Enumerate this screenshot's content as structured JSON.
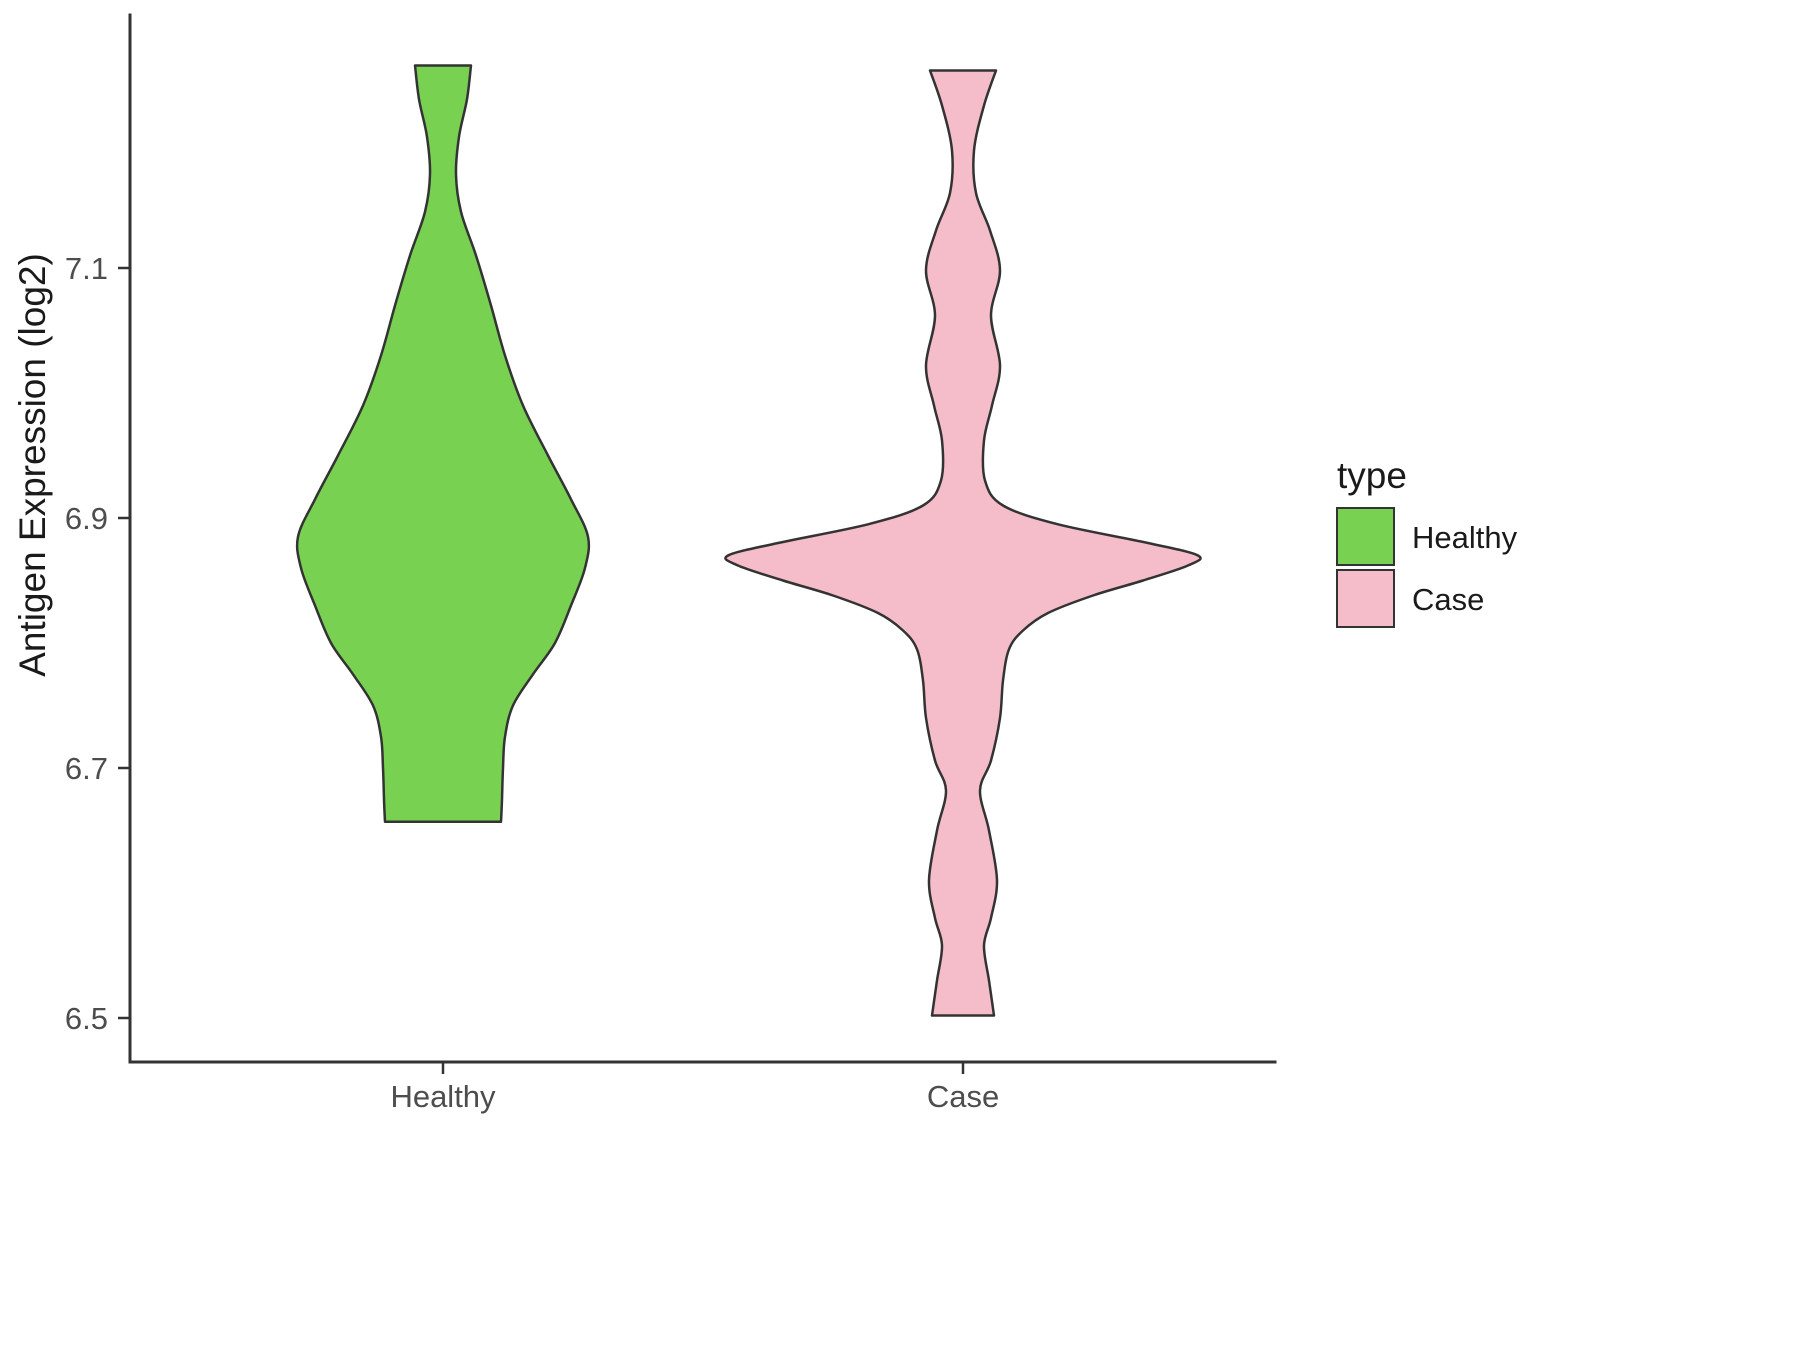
{
  "chart_data": {
    "type": "violin",
    "title": "",
    "xlabel": "",
    "ylabel": "Antigen Expression (log2)",
    "categories": [
      "Healthy",
      "Case"
    ],
    "y_ticks_display": [
      "7.1",
      "6.9",
      "6.7",
      "6.5"
    ],
    "y_tick_values": [
      7.1,
      6.9,
      6.7,
      6.5
    ],
    "ylim": [
      6.46,
      7.31
    ],
    "grid": false,
    "legend": {
      "title": "type",
      "position": "right",
      "entries": [
        {
          "label": "Healthy",
          "color": "#79d152"
        },
        {
          "label": "Case",
          "color": "#f5bdc9"
        }
      ]
    },
    "series": [
      {
        "name": "Healthy",
        "color": "#79d152",
        "value_range": [
          6.657,
          7.262
        ],
        "profile_units": "expression_log2_vs_density_halfwidth_px",
        "profile": [
          [
            7.262,
            28
          ],
          [
            7.235,
            24
          ],
          [
            7.205,
            16
          ],
          [
            7.175,
            13
          ],
          [
            7.145,
            18
          ],
          [
            7.11,
            33
          ],
          [
            7.07,
            48
          ],
          [
            7.03,
            62
          ],
          [
            6.99,
            80
          ],
          [
            6.95,
            105
          ],
          [
            6.915,
            128
          ],
          [
            6.885,
            145
          ],
          [
            6.86,
            142
          ],
          [
            6.83,
            128
          ],
          [
            6.8,
            112
          ],
          [
            6.775,
            90
          ],
          [
            6.75,
            70
          ],
          [
            6.725,
            62
          ],
          [
            6.7,
            60
          ],
          [
            6.675,
            59
          ],
          [
            6.657,
            58
          ]
        ]
      },
      {
        "name": "Case",
        "color": "#f5bdc9",
        "value_range": [
          6.502,
          7.258
        ],
        "profile_units": "expression_log2_vs_density_halfwidth_px",
        "profile": [
          [
            7.258,
            33
          ],
          [
            7.23,
            21
          ],
          [
            7.194,
            11
          ],
          [
            7.16,
            13
          ],
          [
            7.13,
            27
          ],
          [
            7.098,
            37
          ],
          [
            7.062,
            28
          ],
          [
            7.022,
            37
          ],
          [
            6.99,
            29
          ],
          [
            6.962,
            21
          ],
          [
            6.93,
            22
          ],
          [
            6.91,
            40
          ],
          [
            6.895,
            95
          ],
          [
            6.88,
            185
          ],
          [
            6.87,
            235
          ],
          [
            6.862,
            225
          ],
          [
            6.85,
            180
          ],
          [
            6.838,
            130
          ],
          [
            6.824,
            85
          ],
          [
            6.81,
            60
          ],
          [
            6.795,
            46
          ],
          [
            6.77,
            40
          ],
          [
            6.74,
            37
          ],
          [
            6.706,
            28
          ],
          [
            6.682,
            17
          ],
          [
            6.65,
            26
          ],
          [
            6.61,
            34
          ],
          [
            6.58,
            28
          ],
          [
            6.558,
            21
          ],
          [
            6.53,
            26
          ],
          [
            6.502,
            31
          ]
        ]
      }
    ]
  },
  "colors": {
    "axis": "#333333",
    "tick_text": "#4d4d4d",
    "outline": "#333333",
    "background": "#ffffff"
  }
}
